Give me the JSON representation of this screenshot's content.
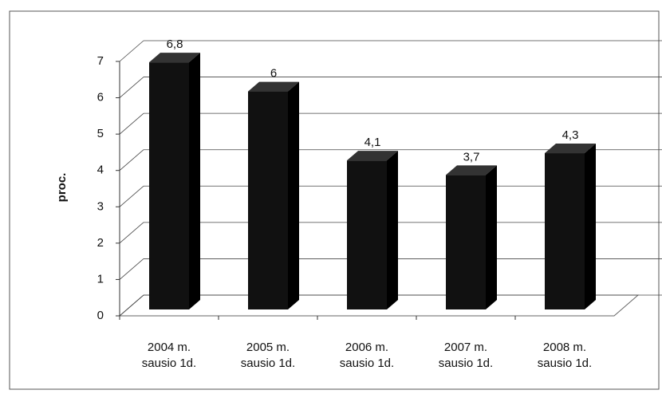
{
  "chart_data": {
    "type": "bar",
    "categories": [
      "2004 m. sausio 1d.",
      "2005 m. sausio 1d.",
      "2006 m. sausio 1d.",
      "2007 m. sausio 1d.",
      "2008 m. sausio 1d."
    ],
    "values": [
      6.8,
      6,
      4.1,
      3.7,
      4.3
    ],
    "value_labels": [
      "6,8",
      "6",
      "4,1",
      "3,7",
      "4,3"
    ],
    "color": "#111111",
    "y_label": "proc.",
    "ylim": [
      0,
      7
    ],
    "yticks": [
      0,
      1,
      2,
      3,
      4,
      5,
      6,
      7
    ],
    "grid": true
  }
}
